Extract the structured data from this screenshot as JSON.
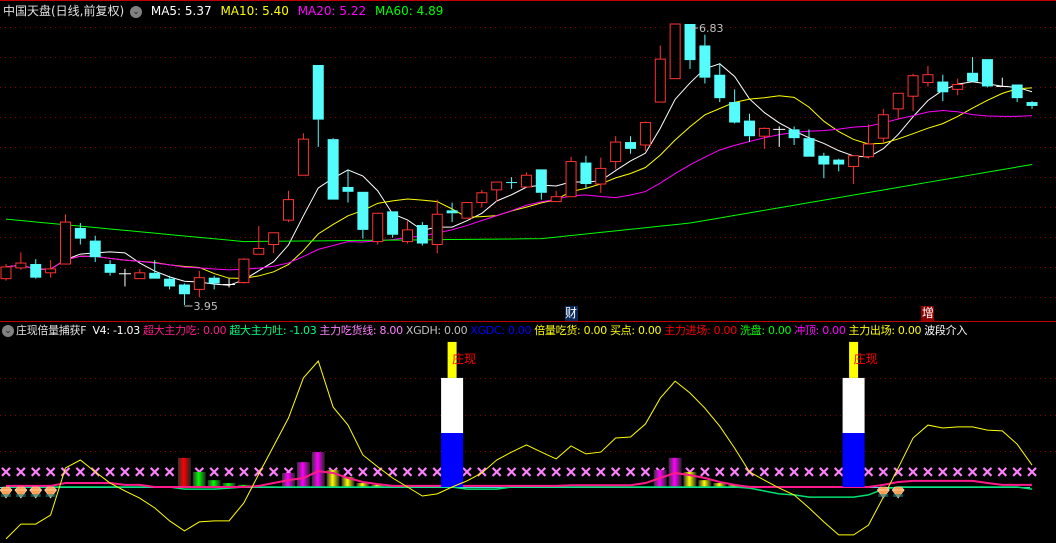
{
  "header": {
    "title": "中国天盘(日线,前复权)",
    "menu_icon": "chevron-down-circle-icon",
    "ma": [
      {
        "label": "MA5: 5.37",
        "color": "#ffffff"
      },
      {
        "label": "MA10: 5.40",
        "color": "#ffff00"
      },
      {
        "label": "MA20: 5.22",
        "color": "#ff00ff"
      },
      {
        "label": "MA60: 4.89",
        "color": "#00ff00"
      }
    ]
  },
  "indicator_header": {
    "name": "庄现倍量捕获F",
    "menu_icon": "chevron-down-circle-icon",
    "items": [
      {
        "label": "V4: -1.03",
        "color": "#ffffff"
      },
      {
        "label": "超大主力吃: 0.00",
        "color": "#ff1a8c"
      },
      {
        "label": "超大主力吐: -1.03",
        "color": "#00ff80"
      },
      {
        "label": "主力吃货线: 8.00",
        "color": "#ff80ff"
      },
      {
        "label": "XGDH: 0.00",
        "color": "#c0c0c0"
      },
      {
        "label": "XGDC: 0.00",
        "color": "#0000ff"
      },
      {
        "label": "倍量吃货: 0.00",
        "color": "#ffff00"
      },
      {
        "label": "买点: 0.00",
        "color": "#ffff00"
      },
      {
        "label": "主力进场: 0.00",
        "color": "#ff0000"
      },
      {
        "label": "洗盘: 0.00",
        "color": "#00ff00"
      },
      {
        "label": "冲顶: 0.00",
        "color": "#ff00ff"
      },
      {
        "label": "主力出场: 0.00",
        "color": "#ffff00"
      },
      {
        "label": "波段介入",
        "color": "#ffffff"
      }
    ]
  },
  "flags": [
    {
      "text": "财",
      "index": 38,
      "bg": "#0a2a5a"
    },
    {
      "text": "增",
      "index": 62,
      "bg": "#8b0000"
    }
  ],
  "colors": {
    "up": "#ff3232",
    "down": "#54fcfc",
    "flat": "#ffffff",
    "grid": "#800000"
  },
  "chart_data": [
    {
      "type": "candlestick",
      "ylim": [
        3.95,
        6.83
      ],
      "grid": true,
      "annotations": [
        {
          "text": "6.83",
          "index": 46,
          "kind": "high"
        },
        {
          "text": "3.95",
          "index": 12,
          "kind": "low"
        }
      ],
      "ohlc": [
        [
          4.22,
          4.37,
          4.2,
          4.34
        ],
        [
          4.33,
          4.49,
          4.31,
          4.38
        ],
        [
          4.37,
          4.42,
          4.22,
          4.23
        ],
        [
          4.28,
          4.41,
          4.23,
          4.32
        ],
        [
          4.37,
          4.88,
          4.37,
          4.8
        ],
        [
          4.74,
          4.79,
          4.57,
          4.63
        ],
        [
          4.61,
          4.66,
          4.39,
          4.44
        ],
        [
          4.37,
          4.41,
          4.25,
          4.28
        ],
        [
          4.27,
          4.32,
          4.14,
          4.27
        ],
        [
          4.22,
          4.32,
          4.22,
          4.28
        ],
        [
          4.28,
          4.41,
          4.22,
          4.22
        ],
        [
          4.22,
          4.25,
          4.11,
          4.14
        ],
        [
          4.16,
          4.17,
          3.95,
          4.06
        ],
        [
          4.11,
          4.3,
          4.03,
          4.23
        ],
        [
          4.23,
          4.25,
          4.11,
          4.17
        ],
        [
          4.16,
          4.22,
          4.13,
          4.16
        ],
        [
          4.18,
          4.43,
          4.17,
          4.42
        ],
        [
          4.47,
          4.76,
          4.47,
          4.53
        ],
        [
          4.57,
          4.69,
          4.48,
          4.69
        ],
        [
          4.82,
          5.12,
          4.8,
          5.03
        ],
        [
          5.28,
          5.71,
          5.28,
          5.65
        ],
        [
          6.41,
          6.41,
          5.57,
          5.85
        ],
        [
          5.65,
          5.66,
          5.03,
          5.03
        ],
        [
          5.16,
          5.34,
          5.0,
          5.11
        ],
        [
          5.11,
          5.11,
          4.63,
          4.72
        ],
        [
          4.6,
          4.89,
          4.57,
          4.89
        ],
        [
          4.91,
          4.91,
          4.64,
          4.67
        ],
        [
          4.6,
          4.81,
          4.58,
          4.72
        ],
        [
          4.77,
          4.8,
          4.56,
          4.58
        ],
        [
          4.57,
          5.03,
          4.48,
          4.88
        ],
        [
          4.92,
          5.0,
          4.8,
          4.89
        ],
        [
          4.84,
          5.0,
          4.84,
          5.0
        ],
        [
          5.0,
          5.13,
          4.95,
          5.1
        ],
        [
          5.13,
          5.21,
          5.01,
          5.21
        ],
        [
          5.21,
          5.26,
          5.14,
          5.2
        ],
        [
          5.16,
          5.31,
          5.16,
          5.28
        ],
        [
          5.34,
          5.34,
          5.03,
          5.1
        ],
        [
          5.01,
          5.12,
          5.01,
          5.06
        ],
        [
          5.06,
          5.47,
          5.06,
          5.42
        ],
        [
          5.41,
          5.48,
          5.14,
          5.19
        ],
        [
          5.19,
          5.46,
          5.1,
          5.35
        ],
        [
          5.42,
          5.68,
          5.34,
          5.62
        ],
        [
          5.62,
          5.68,
          5.5,
          5.55
        ],
        [
          5.59,
          5.83,
          5.53,
          5.82
        ],
        [
          6.03,
          6.61,
          6.03,
          6.47
        ],
        [
          6.27,
          6.83,
          6.27,
          6.83
        ],
        [
          6.83,
          6.83,
          6.37,
          6.46
        ],
        [
          6.61,
          6.72,
          6.22,
          6.28
        ],
        [
          6.31,
          6.43,
          6.03,
          6.07
        ],
        [
          6.03,
          6.16,
          5.81,
          5.82
        ],
        [
          5.84,
          5.91,
          5.62,
          5.68
        ],
        [
          5.68,
          5.77,
          5.55,
          5.76
        ],
        [
          5.75,
          5.78,
          5.57,
          5.75
        ],
        [
          5.75,
          5.78,
          5.59,
          5.66
        ],
        [
          5.66,
          5.75,
          5.47,
          5.47
        ],
        [
          5.48,
          5.51,
          5.25,
          5.39
        ],
        [
          5.44,
          5.45,
          5.32,
          5.39
        ],
        [
          5.37,
          5.48,
          5.19,
          5.48
        ],
        [
          5.47,
          5.8,
          5.45,
          5.6
        ],
        [
          5.66,
          5.96,
          5.61,
          5.9
        ],
        [
          5.96,
          6.12,
          5.85,
          6.12
        ],
        [
          6.09,
          6.32,
          5.94,
          6.3
        ],
        [
          6.23,
          6.4,
          6.19,
          6.31
        ],
        [
          6.24,
          6.31,
          6.04,
          6.13
        ],
        [
          6.16,
          6.27,
          6.1,
          6.21
        ],
        [
          6.33,
          6.49,
          6.24,
          6.24
        ],
        [
          6.47,
          6.47,
          6.18,
          6.19
        ],
        [
          6.19,
          6.28,
          6.19,
          6.19
        ],
        [
          6.21,
          6.21,
          6.03,
          6.07
        ],
        [
          6.03,
          6.04,
          5.96,
          5.99
        ]
      ],
      "moving_averages": [
        {
          "name": "MA5",
          "period": 5,
          "color": "#ffffff"
        },
        {
          "name": "MA10",
          "period": 10,
          "color": "#ffff00"
        },
        {
          "name": "MA20",
          "period": 20,
          "color": "#ff00ff"
        },
        {
          "name": "MA60",
          "color": "#00ff00",
          "points": [
            [
              0,
              4.83
            ],
            [
              16,
              4.6
            ],
            [
              36,
              4.63
            ],
            [
              46,
              4.79
            ],
            [
              69,
              5.39
            ]
          ]
        }
      ]
    },
    {
      "type": "bar",
      "title": "庄现倍量捕获F",
      "grid": true,
      "oscillator": {
        "color": "#ffff00",
        "values": [
          -14.4,
          -10.3,
          -10.3,
          -7.8,
          5.3,
          7.5,
          4.2,
          1.1,
          -1.1,
          -3.1,
          -5.8,
          -9.4,
          -12.2,
          -9.7,
          -9.4,
          -9.4,
          -4.4,
          3.6,
          11.4,
          19.2,
          30.3,
          35.0,
          22.2,
          17.2,
          8.9,
          5.6,
          2.5,
          0,
          -2.5,
          -1.9,
          0,
          1.7,
          3.9,
          7.5,
          9.7,
          11.7,
          9.7,
          7.8,
          11.4,
          9.2,
          9.7,
          13.6,
          13.9,
          17.5,
          24.7,
          29.4,
          26.1,
          21.9,
          16.9,
          10.8,
          4.2,
          1.9,
          -0.3,
          -2.2,
          -5.8,
          -9.7,
          -13.3,
          -13.3,
          -10.6,
          -2.8,
          5.3,
          13.6,
          17.2,
          16.4,
          16.7,
          16.7,
          15.8,
          15.6,
          11.9,
          6.1
        ]
      },
      "pink_line": {
        "color": "#ff1a8c",
        "values": [
          0.3,
          0.3,
          0.3,
          0.3,
          1.1,
          1.1,
          1.1,
          1.1,
          0.6,
          0.6,
          0,
          0,
          0,
          0,
          0,
          0,
          0,
          0.3,
          1.1,
          1.9,
          2.5,
          4.4,
          3.9,
          2.5,
          1.4,
          0.8,
          0.3,
          0.3,
          0.3,
          0.3,
          0.3,
          0.3,
          0.3,
          0.3,
          0.3,
          0.3,
          0.3,
          0.3,
          0.5,
          0.5,
          0.5,
          0.5,
          0.5,
          1.1,
          2.5,
          3.9,
          3.3,
          2.5,
          1.4,
          0.6,
          0,
          0,
          0,
          0,
          0,
          0,
          0,
          0,
          0,
          0.6,
          1.4,
          1.7,
          1.7,
          1.7,
          1.7,
          1.7,
          1.1,
          0.6,
          0.6,
          0.6
        ]
      },
      "green_line": {
        "color": "#00e070",
        "values": [
          0,
          0,
          0,
          0,
          0,
          0,
          0,
          0,
          0,
          0,
          0,
          0,
          -0.6,
          -0.6,
          -0.6,
          -0.3,
          0,
          0,
          0,
          0,
          0,
          0,
          0,
          0,
          0,
          0,
          0,
          0,
          0,
          0,
          0,
          -0.6,
          -0.6,
          -0.6,
          0,
          0,
          0,
          0,
          0,
          0,
          0,
          0,
          0,
          0,
          0,
          0,
          0,
          0,
          0,
          0,
          -0.3,
          -1.1,
          -1.9,
          -2.2,
          -2.8,
          -2.8,
          -2.8,
          -2.8,
          -2.2,
          -0.6,
          0,
          0,
          0,
          0,
          0,
          0,
          0,
          0,
          0,
          -0.6
        ]
      },
      "cross_markers": {
        "value": 4.2,
        "color": "#ff80ff"
      },
      "histogram": [
        [
          12,
          8.1,
          "#ff0000"
        ],
        [
          13,
          4.2,
          "#00ff00"
        ],
        [
          14,
          1.9,
          "#00ff00"
        ],
        [
          15,
          1.1,
          "#00ff00"
        ],
        [
          16,
          0.6,
          "#00ff00"
        ],
        [
          19,
          3.9,
          "#ff00ff"
        ],
        [
          20,
          6.9,
          "#ff00ff"
        ],
        [
          21,
          9.7,
          "#ff00ff"
        ],
        [
          22,
          4.7,
          "#ffff00"
        ],
        [
          23,
          2.8,
          "#ffff00"
        ],
        [
          24,
          1.1,
          "#ffff00"
        ],
        [
          25,
          0.6,
          "#ffff00"
        ],
        [
          26,
          0.3,
          "#ffff00"
        ],
        [
          44,
          4.7,
          "#ff00ff"
        ],
        [
          45,
          8.1,
          "#ff00ff"
        ],
        [
          46,
          4.2,
          "#ffff00"
        ],
        [
          47,
          1.9,
          "#ffff00"
        ],
        [
          48,
          1.1,
          "#ffff00"
        ],
        [
          49,
          0.6,
          "#ffff00"
        ],
        [
          50,
          0.3,
          "#ffff00"
        ]
      ],
      "signal_columns": [
        {
          "index": 30,
          "label": "庄现",
          "blue": 15,
          "white": 30.3,
          "yellow": 40.3
        },
        {
          "index": 57,
          "label": "庄现",
          "blue": 15,
          "white": 30.3,
          "yellow": 40.3
        }
      ],
      "diamond_icons": [
        0,
        1,
        2,
        3,
        59,
        60
      ]
    }
  ]
}
